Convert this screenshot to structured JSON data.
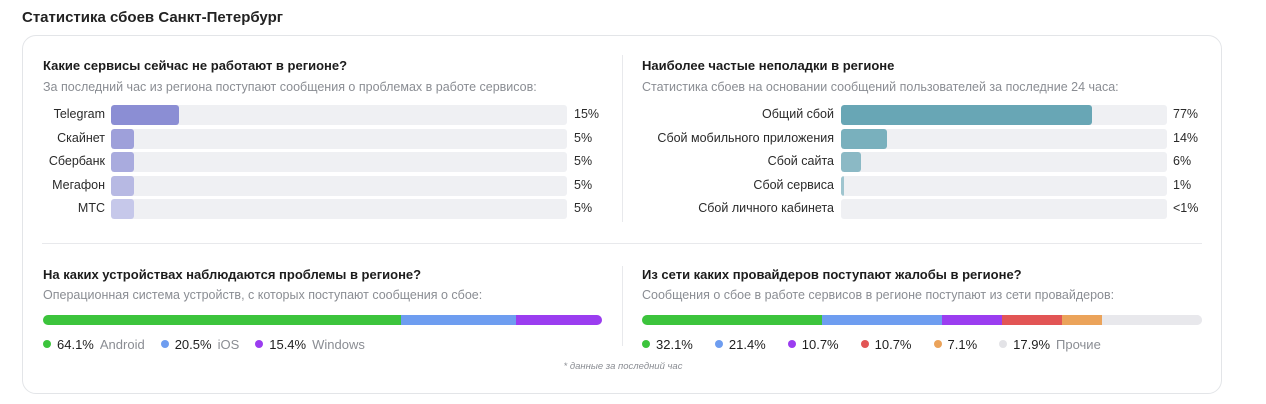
{
  "page_title": "Статистика сбоев Санкт-Петербург",
  "footnote": "* данные за последний час",
  "chart_data": [
    {
      "type": "bar",
      "orientation": "horizontal",
      "title": "Какие сервисы сейчас не работают в регионе?",
      "subtitle": "За последний час из региона поступают сообщения о проблемах в работе сервисов:",
      "categories": [
        "Telegram",
        "Скайнет",
        "Сбербанк",
        "Мегафон",
        "МТС"
      ],
      "values": [
        15,
        5,
        5,
        5,
        5
      ],
      "value_labels": [
        "15%",
        "5%",
        "5%",
        "5%",
        "5%"
      ],
      "colors": [
        "#8b8ed4",
        "#9ea0da",
        "#a9abde",
        "#b7b9e3",
        "#c6c8ea"
      ],
      "xlim": [
        0,
        100
      ]
    },
    {
      "type": "bar",
      "orientation": "horizontal",
      "title": "Наиболее частые неполадки в регионе",
      "subtitle": "Статистика сбоев на основании сообщений пользователей за последние 24 часа:",
      "categories": [
        "Общий сбой",
        "Сбой мобильного приложения",
        "Сбой сайта",
        "Сбой сервиса",
        "Сбой личного кабинета"
      ],
      "values": [
        77,
        14,
        6,
        1,
        0
      ],
      "value_labels": [
        "77%",
        "14%",
        "6%",
        "1%",
        "<1%"
      ],
      "colors": [
        "#68a6b5",
        "#79b0bd",
        "#8bb9c5",
        "#9fc5cf",
        "#b3d1d9"
      ],
      "xlim": [
        0,
        100
      ]
    },
    {
      "type": "stacked-bar",
      "title": "На каких устройствах наблюдаются проблемы в регионе?",
      "subtitle": "Операционная система устройств, с которых поступают сообщения о сбое:",
      "series": [
        {
          "name": "Android",
          "value": 64.1,
          "label": "64.1%",
          "color": "#3cc43c"
        },
        {
          "name": "iOS",
          "value": 20.5,
          "label": "20.5%",
          "color": "#6e9df0"
        },
        {
          "name": "Windows",
          "value": 15.4,
          "label": "15.4%",
          "color": "#9b3df0"
        }
      ]
    },
    {
      "type": "stacked-bar",
      "title": "Из сети каких провайдеров поступают жалобы в регионе?",
      "subtitle": "Сообщения о сбое в работе сервисов в регионе поступают из сети провайдеров:",
      "series": [
        {
          "name": "",
          "value": 32.1,
          "label": "32.1%",
          "color": "#3cc43c"
        },
        {
          "name": "",
          "value": 21.4,
          "label": "21.4%",
          "color": "#6e9df0"
        },
        {
          "name": "",
          "value": 10.7,
          "label": "10.7%",
          "color": "#9b3df0"
        },
        {
          "name": "",
          "value": 10.7,
          "label": "10.7%",
          "color": "#e25555"
        },
        {
          "name": "",
          "value": 7.1,
          "label": "7.1%",
          "color": "#eba35a"
        },
        {
          "name": "Прочие",
          "value": 17.9,
          "label": "17.9%",
          "color": "#e8e8ec"
        }
      ]
    }
  ]
}
